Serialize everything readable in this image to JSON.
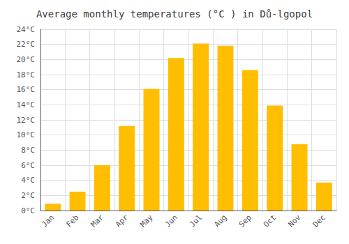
{
  "chart_data": {
    "type": "bar",
    "title": "Average monthly temperatures (°C ) in Dů-lgopol",
    "categories": [
      "Jan",
      "Feb",
      "Mar",
      "Apr",
      "May",
      "Jun",
      "Jul",
      "Aug",
      "Sep",
      "Oct",
      "Nov",
      "Dec"
    ],
    "values": [
      0.9,
      2.5,
      6.0,
      11.2,
      16.1,
      20.2,
      22.1,
      21.8,
      18.6,
      13.9,
      8.8,
      3.7
    ],
    "color": "#FFBE00",
    "ylim": [
      0,
      24
    ],
    "yticks": [
      {
        "value": 0,
        "label": "0°C"
      },
      {
        "value": 2,
        "label": "2°C"
      },
      {
        "value": 4,
        "label": "4°C"
      },
      {
        "value": 6,
        "label": "6°C"
      },
      {
        "value": 8,
        "label": "8°C"
      },
      {
        "value": 10,
        "label": "10°C"
      },
      {
        "value": 12,
        "label": "12°C"
      },
      {
        "value": 14,
        "label": "14°C"
      },
      {
        "value": 16,
        "label": "16°C"
      },
      {
        "value": 18,
        "label": "18°C"
      },
      {
        "value": 20,
        "label": "20°C"
      },
      {
        "value": 22,
        "label": "22°C"
      },
      {
        "value": 24,
        "label": "24°C"
      }
    ],
    "grid": true
  }
}
